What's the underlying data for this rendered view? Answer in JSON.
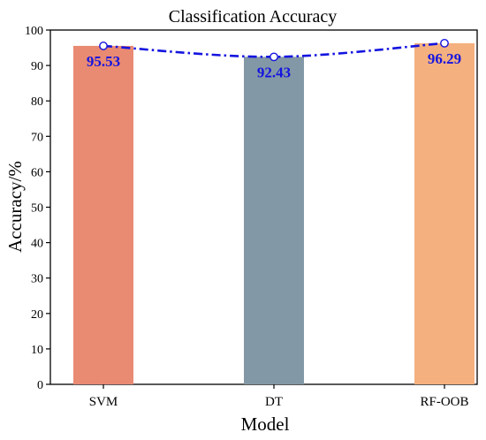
{
  "chart_data": {
    "type": "bar",
    "title": "Classification Accuracy",
    "xlabel": "Model",
    "ylabel": "Accuracy/%",
    "categories": [
      "SVM",
      "DT",
      "RF-OOB"
    ],
    "values": [
      95.53,
      92.43,
      96.29
    ],
    "data_labels": [
      "95.53",
      "92.43",
      "96.29"
    ],
    "bar_colors": [
      "#e98a73",
      "#8398a6",
      "#f4b07f"
    ],
    "line_overlay": {
      "style": "dash-dot",
      "color": "#1414e0",
      "markers": "open-circle"
    },
    "ylim": [
      0,
      100
    ],
    "yticks": [
      0,
      10,
      20,
      30,
      40,
      50,
      60,
      70,
      80,
      90,
      100
    ],
    "ytick_labels": [
      "0",
      "10",
      "20",
      "30",
      "40",
      "50",
      "60",
      "70",
      "80",
      "90",
      "100"
    ],
    "grid": false,
    "legend": "none"
  }
}
